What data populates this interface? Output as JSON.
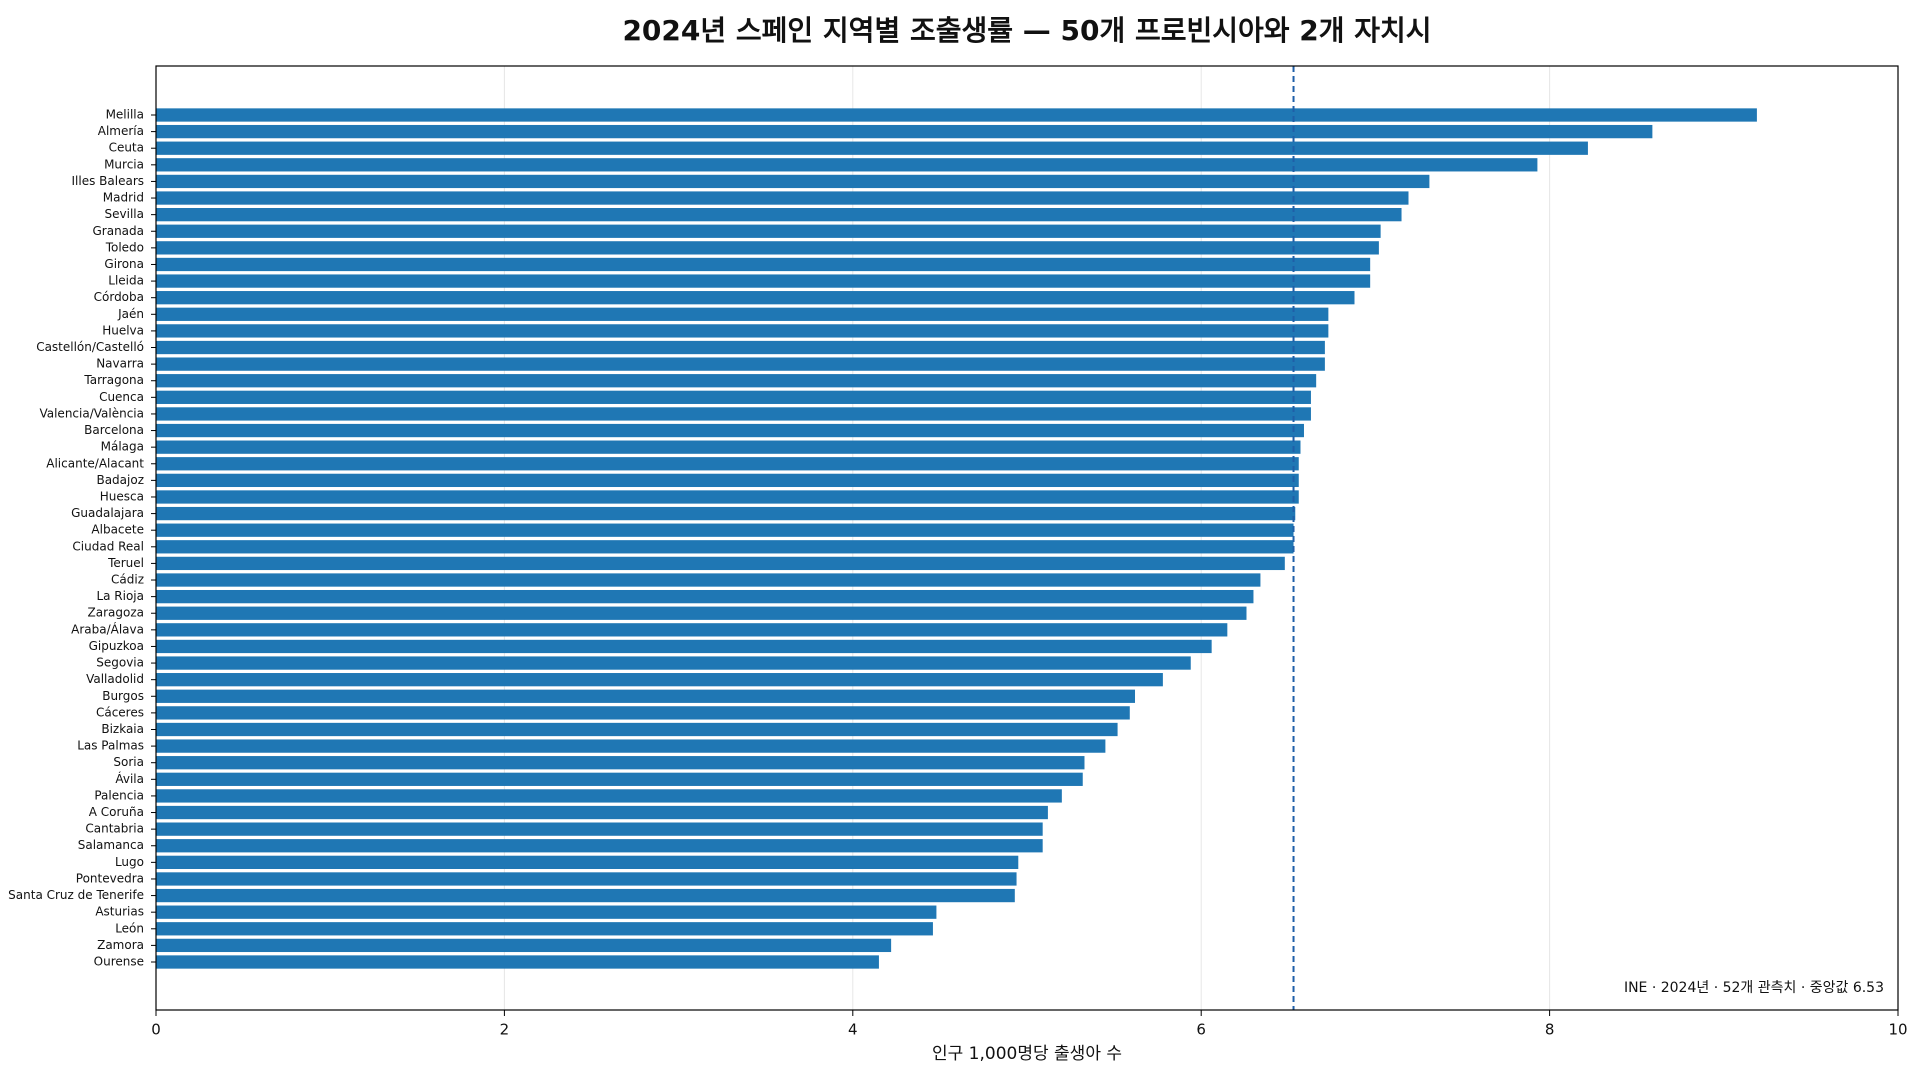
{
  "chart_data": {
    "type": "bar",
    "orientation": "horizontal",
    "title": "2024년 스페인 지역별 조출생률 — 50개 프로빈시아와 2개 자치시",
    "xlabel": "인구 1,000명당 출생아 수",
    "annotation": "INE · 2024년 · 52개 관측치 · 중앙값 6.53",
    "categories": [
      "Melilla",
      "Almería",
      "Ceuta",
      "Murcia",
      "Illes Balears",
      "Madrid",
      "Sevilla",
      "Granada",
      "Toledo",
      "Girona",
      "Lleida",
      "Córdoba",
      "Jaén",
      "Huelva",
      "Castellón/Castelló",
      "Navarra",
      "Tarragona",
      "Cuenca",
      "Valencia/València",
      "Barcelona",
      "Málaga",
      "Alicante/Alacant",
      "Badajoz",
      "Huesca",
      "Guadalajara",
      "Albacete",
      "Ciudad Real",
      "Teruel",
      "Cádiz",
      "La Rioja",
      "Zaragoza",
      "Araba/Álava",
      "Gipuzkoa",
      "Segovia",
      "Valladolid",
      "Burgos",
      "Cáceres",
      "Bizkaia",
      "Las Palmas",
      "Soria",
      "Ávila",
      "Palencia",
      "A Coruña",
      "Cantabria",
      "Salamanca",
      "Lugo",
      "Pontevedra",
      "Santa Cruz de Tenerife",
      "Asturias",
      "León",
      "Zamora",
      "Ourense"
    ],
    "values": [
      9.19,
      8.59,
      8.22,
      7.93,
      7.31,
      7.19,
      7.15,
      7.03,
      7.02,
      6.97,
      6.97,
      6.88,
      6.73,
      6.73,
      6.71,
      6.71,
      6.66,
      6.63,
      6.63,
      6.59,
      6.57,
      6.56,
      6.56,
      6.56,
      6.54,
      6.53,
      6.53,
      6.48,
      6.34,
      6.3,
      6.26,
      6.15,
      6.06,
      5.94,
      5.78,
      5.62,
      5.59,
      5.52,
      5.45,
      5.33,
      5.32,
      5.2,
      5.12,
      5.09,
      5.09,
      4.95,
      4.94,
      4.93,
      4.48,
      4.46,
      4.22,
      4.15
    ],
    "color": "#1f77b4",
    "median": 6.53,
    "median_color": "#1f5fa8",
    "xlim": [
      0,
      10
    ],
    "xticks": [
      0,
      2,
      4,
      6,
      8,
      10
    ],
    "grid": true
  }
}
